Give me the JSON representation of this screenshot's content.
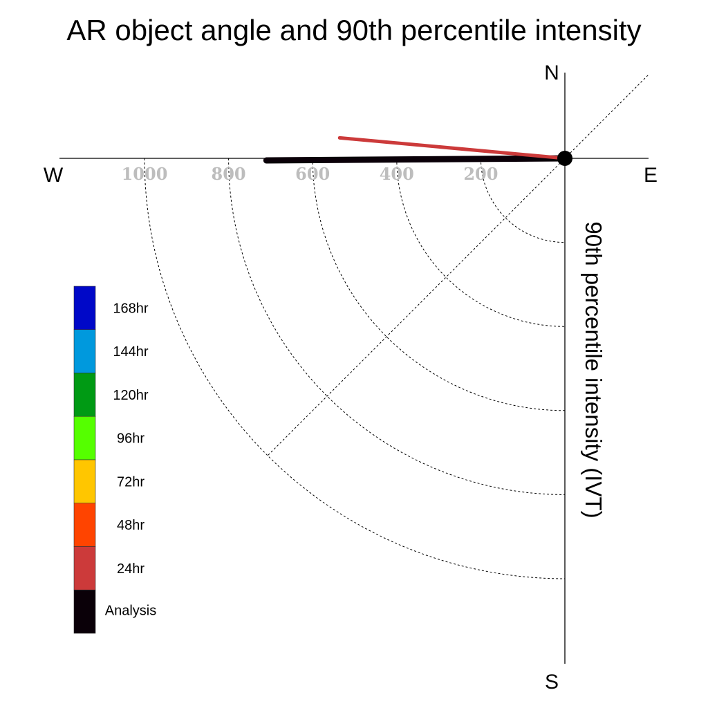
{
  "chart_data": {
    "type": "polar-vector",
    "title": "AR object angle and 90th percentile intensity",
    "radial_axis_label": "90th percentile intensity (IVT)",
    "compass": {
      "north": "N",
      "east": "E",
      "south": "S",
      "west": "W"
    },
    "radial_ticks": [
      200,
      400,
      600,
      800,
      1000
    ],
    "radial_max": 1200,
    "angle_range_deg": [
      180,
      360
    ],
    "series": [
      {
        "name": "Analysis",
        "angle_deg": 179.6,
        "intensity": 710,
        "color": "#0a0008"
      },
      {
        "name": "24hr",
        "angle_deg": 185.2,
        "intensity": 538,
        "color": "#cc3a3a"
      }
    ],
    "legend": [
      {
        "label": "168hr",
        "color": "#0008c8"
      },
      {
        "label": "144hr",
        "color": "#0099dd"
      },
      {
        "label": "120hr",
        "color": "#009a14"
      },
      {
        "label": "96hr",
        "color": "#55ff00"
      },
      {
        "label": "72hr",
        "color": "#ffc600"
      },
      {
        "label": "48hr",
        "color": "#ff4400"
      },
      {
        "label": "24hr",
        "color": "#cc3a3a"
      },
      {
        "label": "Analysis",
        "color": "#0a0008"
      }
    ],
    "grid": true
  }
}
